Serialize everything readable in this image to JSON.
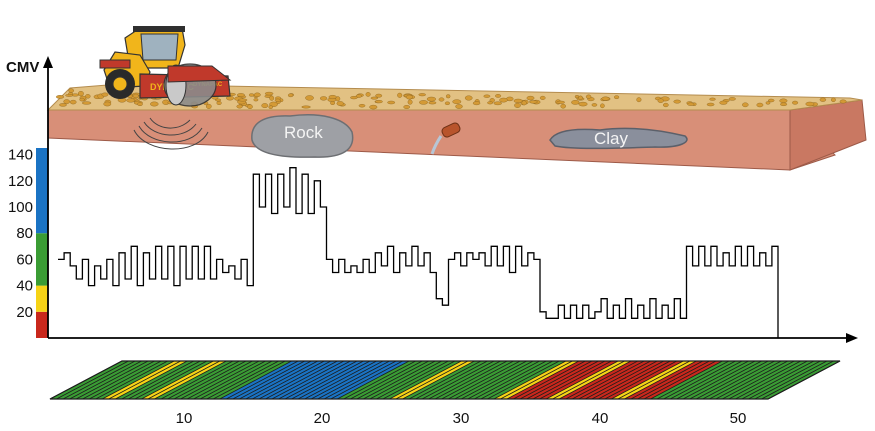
{
  "terrain": {
    "labels": {
      "rock": "Rock",
      "clay": "Clay"
    },
    "roller_brand": "DYNAPAC",
    "colors": {
      "ground_top": "#e2c183",
      "ground_side": "#d88f78",
      "stones": "#d49a35",
      "rock": "#9ea0a5",
      "clay": "#8a8f9c"
    }
  },
  "chart_data": {
    "type": "line",
    "ylabel": "CMV",
    "yticks": [
      20,
      40,
      60,
      80,
      100,
      120,
      140
    ],
    "ylim": [
      0,
      145
    ],
    "xlim": [
      0,
      58
    ],
    "color_scale": [
      {
        "from": 0,
        "to": 20,
        "color": "#c9281c"
      },
      {
        "from": 20,
        "to": 40,
        "color": "#f6d316"
      },
      {
        "from": 40,
        "to": 80,
        "color": "#3a9c34"
      },
      {
        "from": 80,
        "to": 145,
        "color": "#1a73c4"
      }
    ],
    "series": [
      {
        "values": [
          60,
          65,
          55,
          45,
          60,
          40,
          55,
          45,
          60,
          40,
          65,
          45,
          70,
          40,
          65,
          45,
          70,
          45,
          70,
          40,
          70,
          45,
          70,
          45,
          70,
          45,
          60,
          50,
          55,
          45,
          60,
          40,
          125,
          100,
          125,
          95,
          125,
          100,
          130,
          95,
          125,
          95,
          120,
          100,
          60,
          50,
          60,
          50,
          55,
          50,
          60,
          50,
          65,
          55,
          70,
          50,
          65,
          55,
          70,
          55,
          65,
          50,
          30,
          25,
          60,
          65,
          55,
          65,
          60,
          65,
          55,
          70,
          55,
          70,
          50,
          70,
          55,
          65,
          60,
          20,
          15,
          15,
          25,
          15,
          25,
          15,
          25,
          15,
          20,
          30,
          15,
          25,
          15,
          30,
          15,
          25,
          15,
          30,
          15,
          25,
          15,
          30,
          15,
          70,
          55,
          70,
          55,
          70,
          55,
          65,
          55,
          70,
          55,
          70,
          55,
          65,
          55,
          70
        ]
      }
    ]
  },
  "strip": {
    "ticks": [
      "10",
      "20",
      "30",
      "40",
      "50"
    ],
    "segments": [
      {
        "from": 0,
        "to": 4,
        "color": "#3a9c34"
      },
      {
        "from": 4,
        "to": 5,
        "color": "#f6d316"
      },
      {
        "from": 5,
        "to": 7,
        "color": "#3a9c34"
      },
      {
        "from": 7,
        "to": 8,
        "color": "#f6d316"
      },
      {
        "from": 8,
        "to": 13,
        "color": "#3a9c34"
      },
      {
        "from": 13,
        "to": 22,
        "color": "#1a73c4"
      },
      {
        "from": 22,
        "to": 26,
        "color": "#3a9c34"
      },
      {
        "from": 26,
        "to": 27,
        "color": "#f6d316"
      },
      {
        "from": 27,
        "to": 34,
        "color": "#3a9c34"
      },
      {
        "from": 34,
        "to": 35,
        "color": "#f6d316"
      },
      {
        "from": 35,
        "to": 38,
        "color": "#c9281c"
      },
      {
        "from": 38,
        "to": 39,
        "color": "#f6d316"
      },
      {
        "from": 39,
        "to": 43,
        "color": "#c9281c"
      },
      {
        "from": 43,
        "to": 44,
        "color": "#f6d316"
      },
      {
        "from": 44,
        "to": 46,
        "color": "#c9281c"
      },
      {
        "from": 46,
        "to": 55,
        "color": "#3a9c34"
      }
    ]
  }
}
